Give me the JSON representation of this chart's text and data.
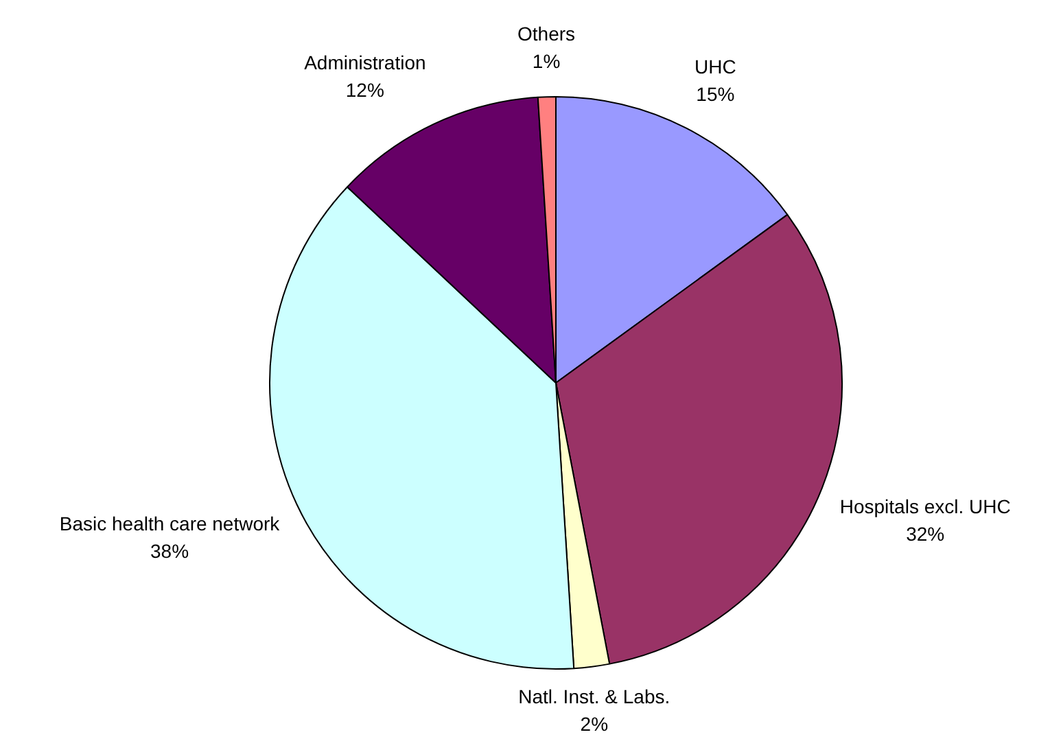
{
  "chart_data": {
    "type": "pie",
    "categories": [
      "UHC",
      "Hospitals excl. UHC",
      "Natl. Inst. & Labs.",
      "Basic health care network",
      "Administration",
      "Others"
    ],
    "values": [
      15,
      32,
      2,
      38,
      12,
      1
    ],
    "value_labels": [
      "15%",
      "32%",
      "2%",
      "38%",
      "12%",
      "1%"
    ],
    "colors": [
      "#9999ff",
      "#993366",
      "#ffffcc",
      "#ccffff",
      "#660066",
      "#ff8080"
    ],
    "legend": false
  }
}
